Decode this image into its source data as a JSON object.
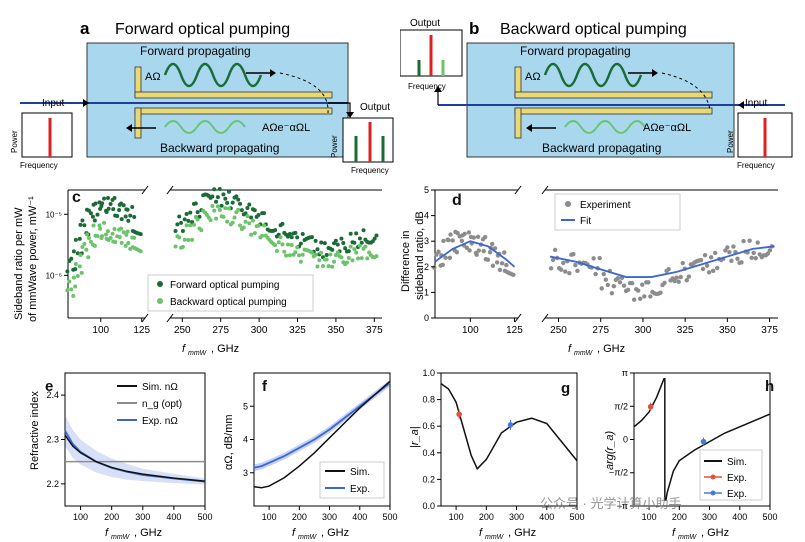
{
  "panel_a": {
    "letter": "a",
    "title": "Forward optical pumping",
    "fwd_label": "Forward propagating",
    "bwd_label": "Backward propagating",
    "input_label": "Input",
    "output_label": "Output",
    "amp_fwd": "AΩ",
    "amp_bwd": "AΩe⁻αΩL",
    "power_label": "Power",
    "freq_label": "Frequency"
  },
  "panel_b": {
    "letter": "b",
    "title": "Backward optical pumping",
    "fwd_label": "Forward propagating",
    "bwd_label": "Backward propagating",
    "input_label": "Input",
    "output_label": "Output",
    "amp_fwd": "AΩ",
    "amp_bwd": "AΩe⁻αΩL",
    "power_label": "Power",
    "freq_label": "Frequency"
  },
  "colors": {
    "forward": "#1a6b35",
    "backward": "#6cc36c",
    "fit": "#3b66d6",
    "gray": "#8c8c8c",
    "sim": "#111111",
    "exp_red": "#e2513f",
    "exp_blue": "#4a78d6",
    "box": "#a9d8ee"
  },
  "chart_data": [
    {
      "panel": "c",
      "type": "scatter",
      "ylabel_1": "Sideband ratio per mW",
      "ylabel_2": "of mmWave power, mW⁻¹",
      "xlabel": "f_mmW, GHz",
      "yscale": "log",
      "ylim": [
        2e-07,
        2.5e-05
      ],
      "x_ticks_left": [
        "100",
        "125"
      ],
      "x_ticks_right": [
        "250",
        "275",
        "300",
        "325",
        "350",
        "375"
      ],
      "y_ticks": [
        "10⁻⁵",
        "10⁻⁶"
      ],
      "legend": [
        "Forward optical pumping",
        "Backward optical pumping"
      ],
      "series": [
        {
          "name": "Forward optical pumping",
          "x": [
            82,
            86,
            90,
            94,
            98,
            102,
            106,
            110,
            114,
            118,
            122,
            248,
            254,
            260,
            266,
            272,
            278,
            284,
            290,
            296,
            302,
            308,
            314,
            320,
            326,
            332,
            338,
            344,
            350,
            356,
            362,
            368,
            374
          ],
          "y": [
            1.5e-06,
            3e-06,
            6e-06,
            9e-06,
            1.3e-05,
            1.5e-05,
            1.4e-05,
            1.2e-05,
            1.1e-05,
            1e-05,
            6e-06,
            7e-06,
            9e-06,
            1.2e-05,
            1.6e-05,
            2e-05,
            1.8e-05,
            1.5e-05,
            1.3e-05,
            1.1e-05,
            9e-06,
            7e-06,
            5.5e-06,
            4.5e-06,
            3.8e-06,
            3.2e-06,
            2.8e-06,
            2.6e-06,
            2.8e-06,
            3.2e-06,
            3.8e-06,
            4.2e-06,
            4.5e-06
          ]
        },
        {
          "name": "Backward optical pumping",
          "x": [
            82,
            86,
            90,
            94,
            98,
            102,
            106,
            110,
            114,
            118,
            122,
            248,
            254,
            260,
            266,
            272,
            278,
            284,
            290,
            296,
            302,
            308,
            314,
            320,
            326,
            332,
            338,
            344,
            350,
            356,
            362,
            368,
            374
          ],
          "y": [
            6e-07,
            1.2e-06,
            2.5e-06,
            4e-06,
            5e-06,
            5.5e-06,
            5e-06,
            4.5e-06,
            4e-06,
            3.5e-06,
            2.5e-06,
            3.5e-06,
            5e-06,
            7e-06,
            9e-06,
            1.1e-05,
            1e-05,
            9e-06,
            7.5e-06,
            6e-06,
            5e-06,
            4e-06,
            3.2e-06,
            2.6e-06,
            2.2e-06,
            2e-06,
            1.8e-06,
            1.7e-06,
            1.8e-06,
            2e-06,
            2.3e-06,
            2.5e-06,
            2.6e-06
          ]
        }
      ]
    },
    {
      "panel": "d",
      "type": "scatter",
      "ylabel_1": "Difference in",
      "ylabel_2": "sideband ratio, dB",
      "xlabel": "f_mmW, GHz",
      "ylim": [
        0,
        5
      ],
      "y_ticks": [
        "0",
        "1",
        "2",
        "3",
        "4",
        "5"
      ],
      "x_ticks_left": [
        "100",
        "125"
      ],
      "x_ticks_right": [
        "250",
        "275",
        "300",
        "325",
        "350",
        "375"
      ],
      "legend": [
        "Experiment",
        "Fit"
      ],
      "series": [
        {
          "name": "Experiment",
          "x": [
            82,
            86,
            90,
            94,
            98,
            102,
            106,
            110,
            114,
            118,
            122,
            248,
            254,
            260,
            266,
            272,
            278,
            284,
            290,
            296,
            302,
            308,
            314,
            320,
            326,
            332,
            338,
            344,
            350,
            356,
            362,
            368,
            374
          ],
          "y": [
            2.3,
            2.7,
            2.9,
            3.0,
            3.1,
            2.9,
            2.8,
            2.6,
            2.4,
            2.2,
            2.0,
            2.3,
            2.0,
            2.2,
            1.8,
            2.0,
            1.5,
            1.2,
            1.4,
            1.0,
            1.2,
            1.3,
            1.6,
            1.5,
            1.8,
            1.9,
            2.1,
            2.2,
            2.4,
            2.5,
            2.7,
            2.6,
            2.8
          ]
        },
        {
          "name": "Fit",
          "x": [
            80,
            90,
            100,
            110,
            120,
            125,
            245,
            260,
            275,
            290,
            305,
            320,
            335,
            350,
            365,
            378
          ],
          "y": [
            2.2,
            2.7,
            3.0,
            2.8,
            2.3,
            2.0,
            2.4,
            2.2,
            1.9,
            1.6,
            1.6,
            1.8,
            2.1,
            2.4,
            2.7,
            2.8
          ]
        }
      ]
    },
    {
      "panel": "e",
      "type": "line",
      "ylabel": "Refractive index",
      "xlabel": "f_mmW, GHz",
      "xlim": [
        50,
        500
      ],
      "ylim": [
        2.15,
        2.45
      ],
      "x_ticks": [
        "100",
        "200",
        "300",
        "400",
        "500"
      ],
      "y_ticks": [
        "2.2",
        "2.3",
        "2.4"
      ],
      "legend": [
        "Sim. nΩ",
        "n_g (opt)",
        "Exp. nΩ"
      ],
      "series": [
        {
          "name": "Sim. nΩ",
          "x": [
            50,
            75,
            100,
            150,
            200,
            250,
            300,
            400,
            500
          ],
          "y": [
            2.31,
            2.285,
            2.27,
            2.25,
            2.237,
            2.228,
            2.222,
            2.213,
            2.206
          ]
        },
        {
          "name": "n_g (opt)",
          "x": [
            50,
            500
          ],
          "y": [
            2.25,
            2.25
          ]
        },
        {
          "name": "Exp. nΩ",
          "x": [
            50,
            75,
            100,
            150,
            200,
            250,
            300,
            400,
            500
          ],
          "y": [
            2.32,
            2.29,
            2.272,
            2.25,
            2.236,
            2.227,
            2.22,
            2.212,
            2.205
          ]
        }
      ]
    },
    {
      "panel": "f",
      "type": "line",
      "ylabel": "αΩ, dB/mm",
      "xlabel": "f_mmW, GHz",
      "xlim": [
        50,
        500
      ],
      "ylim": [
        2,
        6
      ],
      "x_ticks": [
        "100",
        "200",
        "300",
        "400",
        "500"
      ],
      "y_ticks": [
        "3",
        "4",
        "5"
      ],
      "legend": [
        "Sim.",
        "Exp."
      ],
      "series": [
        {
          "name": "Sim.",
          "x": [
            50,
            75,
            100,
            150,
            200,
            250,
            300,
            350,
            400,
            450,
            500
          ],
          "y": [
            2.58,
            2.55,
            2.6,
            2.85,
            3.2,
            3.6,
            4.05,
            4.5,
            4.95,
            5.35,
            5.75
          ]
        },
        {
          "name": "Exp.",
          "x": [
            50,
            75,
            100,
            150,
            200,
            250,
            300,
            350,
            400,
            450,
            500
          ],
          "y": [
            3.15,
            3.2,
            3.3,
            3.5,
            3.75,
            4.0,
            4.3,
            4.65,
            5.0,
            5.35,
            5.7
          ]
        }
      ]
    },
    {
      "panel": "g",
      "type": "line",
      "ylabel": "|r_a|",
      "xlabel": "f_mmW, GHz",
      "xlim": [
        50,
        500
      ],
      "ylim": [
        0,
        1
      ],
      "x_ticks": [
        "100",
        "200",
        "300",
        "400",
        "500"
      ],
      "y_ticks": [
        "0.0",
        "0.2",
        "0.4",
        "0.6",
        "0.8",
        "1.0"
      ],
      "series": [
        {
          "name": "Sim.",
          "x": [
            50,
            75,
            100,
            125,
            150,
            170,
            200,
            250,
            300,
            350,
            400,
            450,
            500
          ],
          "y": [
            0.92,
            0.88,
            0.78,
            0.58,
            0.38,
            0.28,
            0.35,
            0.55,
            0.63,
            0.66,
            0.62,
            0.48,
            0.34
          ]
        },
        {
          "name": "Exp. (red)",
          "x": [
            110
          ],
          "y": [
            0.69
          ]
        },
        {
          "name": "Exp. (blue)",
          "x": [
            280
          ],
          "y": [
            0.61
          ]
        }
      ]
    },
    {
      "panel": "h",
      "type": "line",
      "ylabel": "arg(r_a)",
      "xlabel": "f_mmW, GHz",
      "xlim": [
        50,
        500
      ],
      "ylim": [
        -3.1416,
        3.1416
      ],
      "x_ticks": [
        "100",
        "200",
        "300",
        "400",
        "500"
      ],
      "y_ticks": [
        "π",
        "π/2",
        "0",
        "−π/2",
        "−π"
      ],
      "legend": [
        "Sim.",
        "Exp.",
        "Exp."
      ],
      "series": [
        {
          "name": "Sim.",
          "x": [
            50,
            75,
            100,
            125,
            150,
            155,
            160,
            180,
            200,
            250,
            300,
            350,
            400,
            450,
            500
          ],
          "y": [
            0.6,
            0.9,
            1.3,
            2.0,
            2.9,
            -2.9,
            -2.5,
            -1.5,
            -1.0,
            -0.5,
            -0.1,
            0.3,
            0.6,
            0.9,
            1.2
          ]
        },
        {
          "name": "Exp. (red)",
          "x": [
            105
          ],
          "y": [
            1.55
          ]
        },
        {
          "name": "Exp. (blue)",
          "x": [
            280
          ],
          "y": [
            -0.1
          ]
        }
      ]
    }
  ],
  "watermark": "公众号 · 光学计算小助手"
}
